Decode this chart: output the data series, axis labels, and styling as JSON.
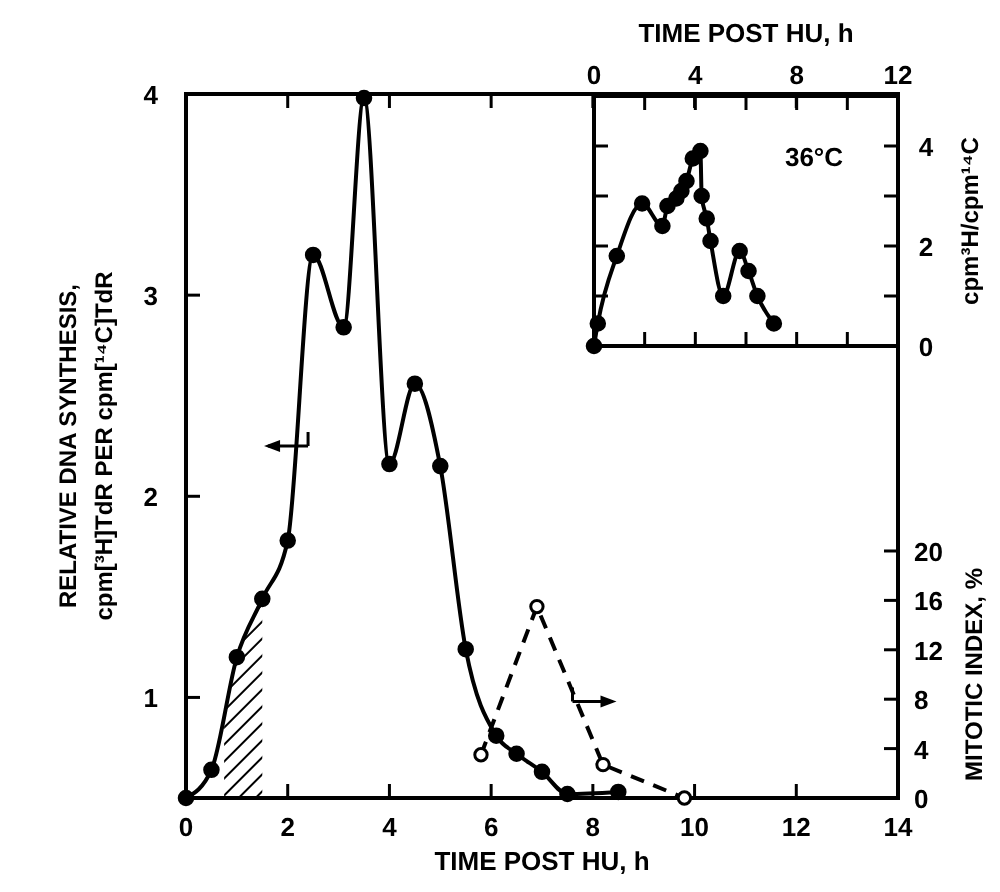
{
  "chart_data": [
    {
      "type": "line",
      "xlabel": "TIME POST HU, h",
      "ylabel": "RELATIVE DNA SYNTHESIS, cpm[³H]TdR PER cpm[¹⁴C]TdR",
      "y2label": "MITOTIC INDEX, %",
      "xlim": [
        0,
        14
      ],
      "xticks": [
        0,
        2,
        4,
        6,
        8,
        10,
        12,
        14
      ],
      "ylim": [
        0.5,
        4
      ],
      "yticks": [
        1,
        2,
        3,
        4
      ],
      "y2lim": [
        0,
        57
      ],
      "y2ticks": [
        0,
        4,
        8,
        12,
        16,
        20
      ],
      "grid": false,
      "bands": [
        {
          "axis": "x",
          "from": 0.75,
          "to": 1.5
        }
      ],
      "series": [
        {
          "color": "#000000",
          "marker": "circle",
          "line_style": "solid",
          "x": [
            0,
            0.5,
            1.0,
            1.5,
            2.0,
            2.5,
            3.1,
            3.5,
            4.0,
            4.5,
            5.0,
            5.5,
            6.1,
            6.5,
            7.0,
            7.5,
            8.5
          ],
          "values": [
            0.5,
            0.64,
            1.2,
            1.49,
            1.78,
            3.2,
            2.84,
            3.98,
            2.16,
            2.56,
            2.15,
            1.24,
            0.81,
            0.72,
            0.63,
            0.52,
            0.53
          ]
        },
        {
          "color": "#000000",
          "marker": "circle",
          "line_style": "dashed",
          "axis": "y2",
          "x": [
            5.8,
            6.9,
            8.2,
            9.8
          ],
          "values": [
            3.5,
            15.5,
            2.7,
            0
          ]
        }
      ]
    },
    {
      "type": "line",
      "xlabel": "TIME POST HU, h",
      "ylabel": "cpm³H/cpm¹⁴C",
      "annotations": [
        "36°C"
      ],
      "xlim": [
        0,
        12
      ],
      "xticks": [
        0,
        {
          "value": 2,
          "label": null
        },
        4,
        {
          "value": 6,
          "label": null
        },
        8,
        {
          "value": 10,
          "label": null
        },
        12
      ],
      "ylim": [
        0,
        5
      ],
      "yticks": [
        0,
        {
          "value": 1,
          "label": null
        },
        2,
        {
          "value": 3,
          "label": null
        },
        4
      ],
      "grid": false,
      "series": [
        {
          "color": "#000000",
          "marker": "circle",
          "line_style": "solid",
          "x": [
            0,
            0.15,
            0.9,
            1.9,
            2.7,
            2.9,
            3.25,
            3.45,
            3.65,
            3.9,
            4.2,
            4.25,
            4.45,
            4.6,
            5.1,
            5.75,
            6.1,
            6.45,
            7.1
          ],
          "values": [
            0,
            0.45,
            1.8,
            2.85,
            2.4,
            2.8,
            2.95,
            3.1,
            3.3,
            3.75,
            3.9,
            3.0,
            2.55,
            2.1,
            1.0,
            1.9,
            1.5,
            1.0,
            0.45
          ]
        }
      ]
    }
  ]
}
